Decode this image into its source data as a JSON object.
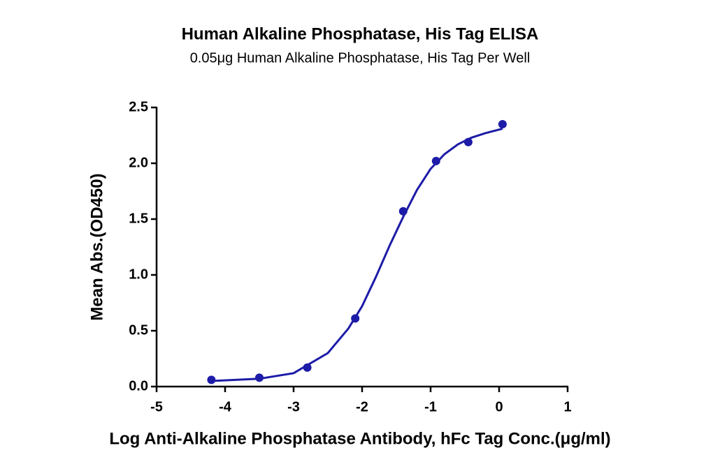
{
  "chart_data": {
    "type": "scatter",
    "title": "Human Alkaline Phosphatase, His Tag ELISA",
    "subtitle": "0.05μg Human Alkaline Phosphatase, His Tag Per Well",
    "x_label": "Log Anti-Alkaline Phosphatase Antibody, hFc Tag Conc.(μg/ml)",
    "y_label": "Mean Abs.(OD450)",
    "color": "#1c1ca8",
    "x": [
      -4.2,
      -3.5,
      -2.8,
      -2.1,
      -1.4,
      -0.92,
      -0.45,
      0.05
    ],
    "values": [
      0.06,
      0.08,
      0.17,
      0.61,
      1.57,
      2.02,
      2.19,
      2.35
    ],
    "fit": {
      "x": [
        -4.2,
        -3.5,
        -3.0,
        -2.5,
        -2.2,
        -2.0,
        -1.8,
        -1.6,
        -1.4,
        -1.2,
        -1.0,
        -0.8,
        -0.6,
        -0.4,
        -0.2,
        0.05
      ],
      "values": [
        0.05,
        0.07,
        0.12,
        0.3,
        0.52,
        0.72,
        0.98,
        1.26,
        1.52,
        1.76,
        1.95,
        2.08,
        2.17,
        2.23,
        2.27,
        2.31
      ]
    },
    "xlim": [
      -5,
      1
    ],
    "xticks": [
      -5,
      -4,
      -3,
      -2,
      -1,
      0,
      1
    ],
    "ylim": [
      0,
      2.5
    ],
    "yticks": [
      {
        "value": 0,
        "label": "0.0"
      },
      0.5,
      {
        "value": 1,
        "label": "1.0"
      },
      1.5,
      {
        "value": 2,
        "label": "2.0"
      },
      2.5
    ],
    "grid": false
  }
}
